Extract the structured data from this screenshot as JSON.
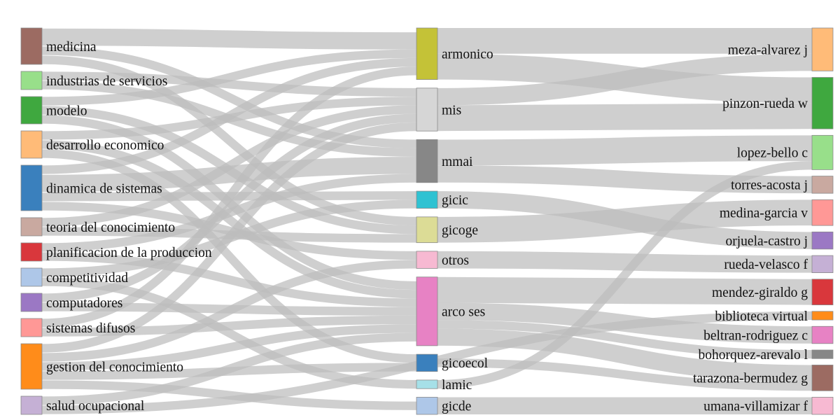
{
  "chart_data": {
    "type": "sankey",
    "link_color": "#bdbdbd",
    "columns": [
      {
        "id": "topics",
        "nodes": [
          {
            "id": "medicina",
            "label": "medicina",
            "color": "#9c6b62"
          },
          {
            "id": "industrias",
            "label": "industrias de servicios",
            "color": "#98df8a"
          },
          {
            "id": "modelo",
            "label": "modelo",
            "color": "#3fa83f"
          },
          {
            "id": "desarrollo",
            "label": "desarrollo economico",
            "color": "#ffbb78"
          },
          {
            "id": "dinamica",
            "label": "dinamica de sistemas",
            "color": "#3a80bd"
          },
          {
            "id": "teoria",
            "label": "teoria del conocimiento",
            "color": "#c9a9a0"
          },
          {
            "id": "planificacion",
            "label": "planificacion de la produccion",
            "color": "#d9373c"
          },
          {
            "id": "competitividad",
            "label": "competitividad",
            "color": "#aec7e8"
          },
          {
            "id": "computadores",
            "label": "computadores",
            "color": "#9b78c4"
          },
          {
            "id": "difusos",
            "label": "sistemas difusos",
            "color": "#ff9896"
          },
          {
            "id": "gestion",
            "label": "gestion del conocimiento",
            "color": "#ff8c1a"
          },
          {
            "id": "salud",
            "label": "salud ocupacional",
            "color": "#c5b0d5"
          }
        ]
      },
      {
        "id": "groups",
        "nodes": [
          {
            "id": "armonico",
            "label": "armonico",
            "color": "#c4c237"
          },
          {
            "id": "mis",
            "label": "mis",
            "color": "#d6d6d6"
          },
          {
            "id": "mmai",
            "label": "mmai",
            "color": "#878787"
          },
          {
            "id": "gicic",
            "label": "gicic",
            "color": "#2fc2d2"
          },
          {
            "id": "gicoge",
            "label": "gicoge",
            "color": "#dcdc96"
          },
          {
            "id": "otros",
            "label": "otros",
            "color": "#f7b9d2"
          },
          {
            "id": "arco",
            "label": "arco ses",
            "color": "#e782c4"
          },
          {
            "id": "gicoecol",
            "label": "gicoecol",
            "color": "#3a80bd"
          },
          {
            "id": "lamic",
            "label": "lamic",
            "color": "#a6e0e8"
          },
          {
            "id": "gicde",
            "label": "gicde",
            "color": "#aec7e8"
          }
        ]
      },
      {
        "id": "authors",
        "nodes": [
          {
            "id": "meza",
            "label": "meza-alvarez j",
            "color": "#ffbb78"
          },
          {
            "id": "pinzon",
            "label": "pinzon-rueda w",
            "color": "#3fa83f"
          },
          {
            "id": "lopez",
            "label": "lopez-bello c",
            "color": "#98df8a"
          },
          {
            "id": "torres",
            "label": "torres-acosta j",
            "color": "#c9a9a0"
          },
          {
            "id": "medina",
            "label": "medina-garcia v",
            "color": "#ff9896"
          },
          {
            "id": "orjuela",
            "label": "orjuela-castro j",
            "color": "#9b78c4"
          },
          {
            "id": "rueda",
            "label": "rueda-velasco f",
            "color": "#c5b0d5"
          },
          {
            "id": "mendez",
            "label": "mendez-giraldo g",
            "color": "#d9373c"
          },
          {
            "id": "biblioteca",
            "label": "biblioteca virtual",
            "color": "#ff8c1a"
          },
          {
            "id": "beltran",
            "label": "beltran-rodriguez c",
            "color": "#e782c4"
          },
          {
            "id": "bohorquez",
            "label": "bohorquez-arevalo l",
            "color": "#878787"
          },
          {
            "id": "tarazona",
            "label": "tarazona-bermudez g",
            "color": "#9c6b62"
          },
          {
            "id": "umana",
            "label": "umana-villamizar f",
            "color": "#f7b9d2"
          }
        ]
      }
    ],
    "links": [
      {
        "source": "medicina",
        "target": "armonico",
        "value": 1.0
      },
      {
        "source": "medicina",
        "target": "mmai",
        "value": 0.5
      },
      {
        "source": "medicina",
        "target": "gicoge",
        "value": 0.5
      },
      {
        "source": "industrias",
        "target": "mis",
        "value": 0.5
      },
      {
        "source": "industrias",
        "target": "mmai",
        "value": 0.5
      },
      {
        "source": "modelo",
        "target": "armonico",
        "value": 0.5
      },
      {
        "source": "modelo",
        "target": "gicoge",
        "value": 0.5
      },
      {
        "source": "modelo",
        "target": "arco",
        "value": 0.5
      },
      {
        "source": "desarrollo",
        "target": "mis",
        "value": 0.5
      },
      {
        "source": "desarrollo",
        "target": "arco",
        "value": 0.5
      },
      {
        "source": "desarrollo",
        "target": "gicoecol",
        "value": 0.5
      },
      {
        "source": "dinamica",
        "target": "armonico",
        "value": 0.5
      },
      {
        "source": "dinamica",
        "target": "mmai",
        "value": 1.0
      },
      {
        "source": "dinamica",
        "target": "gicic",
        "value": 0.5
      },
      {
        "source": "dinamica",
        "target": "otros",
        "value": 0.5
      },
      {
        "source": "teoria",
        "target": "mis",
        "value": 0.5
      },
      {
        "source": "teoria",
        "target": "gicoge",
        "value": 0.5
      },
      {
        "source": "planificacion",
        "target": "mmai",
        "value": 0.5
      },
      {
        "source": "planificacion",
        "target": "arco",
        "value": 0.5
      },
      {
        "source": "competitividad",
        "target": "gicic",
        "value": 0.5
      },
      {
        "source": "competitividad",
        "target": "lamic",
        "value": 0.5
      },
      {
        "source": "computadores",
        "target": "mis",
        "value": 0.5
      },
      {
        "source": "computadores",
        "target": "arco",
        "value": 0.5
      },
      {
        "source": "difusos",
        "target": "armonico",
        "value": 0.5
      },
      {
        "source": "difusos",
        "target": "arco",
        "value": 0.5
      },
      {
        "source": "gestion",
        "target": "mis",
        "value": 0.5
      },
      {
        "source": "gestion",
        "target": "otros",
        "value": 0.5
      },
      {
        "source": "gestion",
        "target": "arco",
        "value": 0.5
      },
      {
        "source": "gestion",
        "target": "gicoecol",
        "value": 0.5
      },
      {
        "source": "gestion",
        "target": "gicde",
        "value": 0.5
      },
      {
        "source": "salud",
        "target": "arco",
        "value": 0.5
      },
      {
        "source": "salud",
        "target": "biblioteca",
        "value": 0.5
      },
      {
        "source": "armonico",
        "target": "pinzon",
        "value": 1.5
      },
      {
        "source": "armonico",
        "target": "meza",
        "value": 1.5
      },
      {
        "source": "mis",
        "target": "meza",
        "value": 1.0
      },
      {
        "source": "mis",
        "target": "pinzon",
        "value": 1.5
      },
      {
        "source": "mmai",
        "target": "lopez",
        "value": 1.5
      },
      {
        "source": "mmai",
        "target": "torres",
        "value": 1.0
      },
      {
        "source": "gicic",
        "target": "orjuela",
        "value": 1.0
      },
      {
        "source": "gicoge",
        "target": "medina",
        "value": 1.5
      },
      {
        "source": "otros",
        "target": "rueda",
        "value": 1.0
      },
      {
        "source": "arco",
        "target": "mendez",
        "value": 1.5
      },
      {
        "source": "arco",
        "target": "beltran",
        "value": 1.0
      },
      {
        "source": "arco",
        "target": "bohorquez",
        "value": 0.5
      },
      {
        "source": "arco",
        "target": "tarazona",
        "value": 1.0
      },
      {
        "source": "gicoecol",
        "target": "tarazona",
        "value": 0.5
      },
      {
        "source": "lamic",
        "target": "lopez",
        "value": 0.5
      },
      {
        "source": "gicde",
        "target": "umana",
        "value": 1.0
      }
    ]
  }
}
